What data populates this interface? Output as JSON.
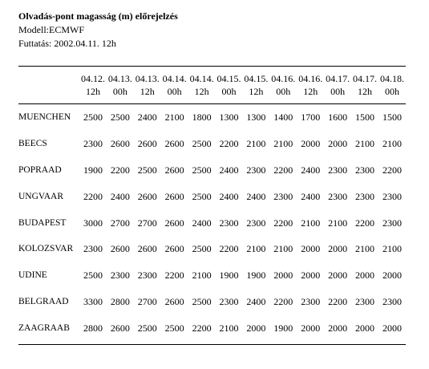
{
  "header": {
    "title": "Olvadás-pont magasság (m) előrejelzés",
    "model": "Modell:ECMWF",
    "run": "Futtatás: 2002.04.11. 12h"
  },
  "table": {
    "columns": [
      {
        "date": "04.12.",
        "hour": "12h"
      },
      {
        "date": "04.13.",
        "hour": "00h"
      },
      {
        "date": "04.13.",
        "hour": "12h"
      },
      {
        "date": "04.14.",
        "hour": "00h"
      },
      {
        "date": "04.14.",
        "hour": "12h"
      },
      {
        "date": "04.15.",
        "hour": "00h"
      },
      {
        "date": "04.15.",
        "hour": "12h"
      },
      {
        "date": "04.16.",
        "hour": "00h"
      },
      {
        "date": "04.16.",
        "hour": "12h"
      },
      {
        "date": "04.17.",
        "hour": "00h"
      },
      {
        "date": "04.17.",
        "hour": "12h"
      },
      {
        "date": "04.18.",
        "hour": "00h"
      }
    ],
    "rows": [
      {
        "city": "MUENCHEN",
        "values": [
          "2500",
          "2500",
          "2400",
          "2100",
          "1800",
          "1300",
          "1300",
          "1400",
          "1700",
          "1600",
          "1500",
          "1500"
        ]
      },
      {
        "city": "BEECS",
        "values": [
          "2300",
          "2600",
          "2600",
          "2600",
          "2500",
          "2200",
          "2100",
          "2100",
          "2000",
          "2000",
          "2100",
          "2100"
        ]
      },
      {
        "city": "POPRAAD",
        "values": [
          "1900",
          "2200",
          "2500",
          "2600",
          "2500",
          "2400",
          "2300",
          "2200",
          "2400",
          "2300",
          "2300",
          "2200"
        ]
      },
      {
        "city": "UNGVAAR",
        "values": [
          "2200",
          "2400",
          "2600",
          "2600",
          "2500",
          "2400",
          "2400",
          "2300",
          "2400",
          "2300",
          "2300",
          "2300"
        ]
      },
      {
        "city": "BUDAPEST",
        "values": [
          "3000",
          "2700",
          "2700",
          "2600",
          "2400",
          "2300",
          "2300",
          "2200",
          "2100",
          "2100",
          "2200",
          "2300"
        ]
      },
      {
        "city": "KOLOZSVAR",
        "values": [
          "2300",
          "2600",
          "2600",
          "2600",
          "2500",
          "2200",
          "2100",
          "2100",
          "2000",
          "2000",
          "2100",
          "2100"
        ]
      },
      {
        "city": "UDINE",
        "values": [
          "2500",
          "2300",
          "2300",
          "2200",
          "2100",
          "1900",
          "1900",
          "2000",
          "2000",
          "2000",
          "2000",
          "2000"
        ]
      },
      {
        "city": "BELGRAAD",
        "values": [
          "3300",
          "2800",
          "2700",
          "2600",
          "2500",
          "2300",
          "2400",
          "2200",
          "2300",
          "2200",
          "2300",
          "2300"
        ]
      },
      {
        "city": "ZAAGRAAB",
        "values": [
          "2800",
          "2600",
          "2500",
          "2500",
          "2200",
          "2100",
          "2000",
          "1900",
          "2000",
          "2000",
          "2000",
          "2000"
        ]
      }
    ]
  }
}
